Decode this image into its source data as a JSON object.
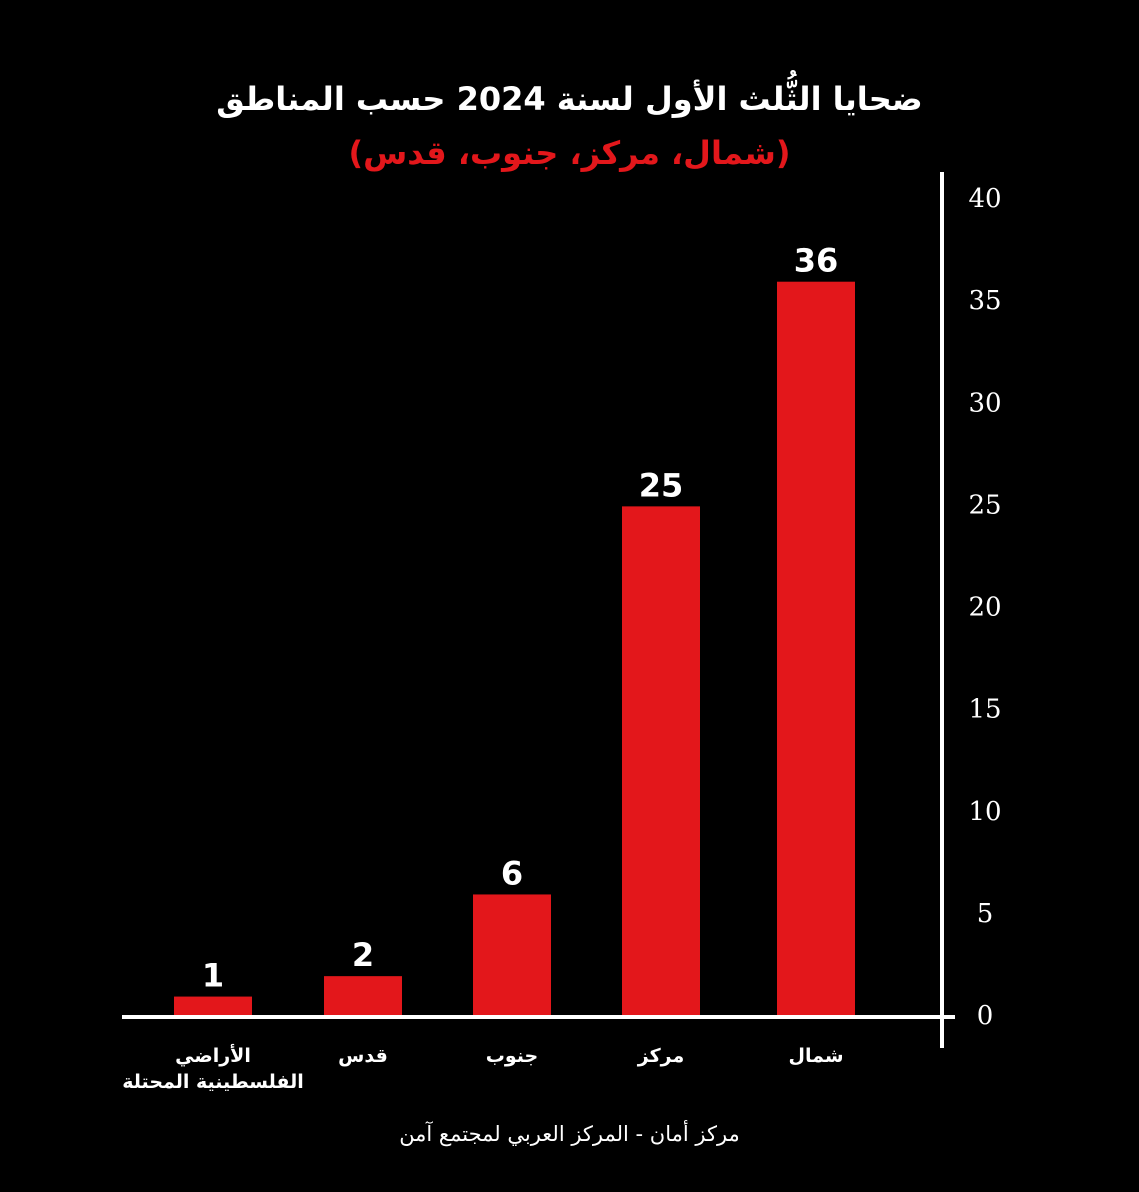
{
  "chart_data": {
    "type": "bar",
    "title": "ضحايا الثُّلث الأول لسنة 2024 حسب المناطق",
    "subtitle": "(شمال، مركز، جنوب، قدس)",
    "source": "مركز أمان  - المركز العربي لمجتمع آمن",
    "categories": [
      "شمال",
      "مركز",
      "جنوب",
      "قدس",
      "الأراضي الفلسطينية المحتلة"
    ],
    "values": [
      36,
      25,
      6,
      2,
      1
    ],
    "color": "#e3171b",
    "ylim": [
      0,
      40
    ],
    "yticks": [
      0,
      5,
      10,
      15,
      20,
      25,
      30,
      35,
      40
    ],
    "grid": false
  }
}
